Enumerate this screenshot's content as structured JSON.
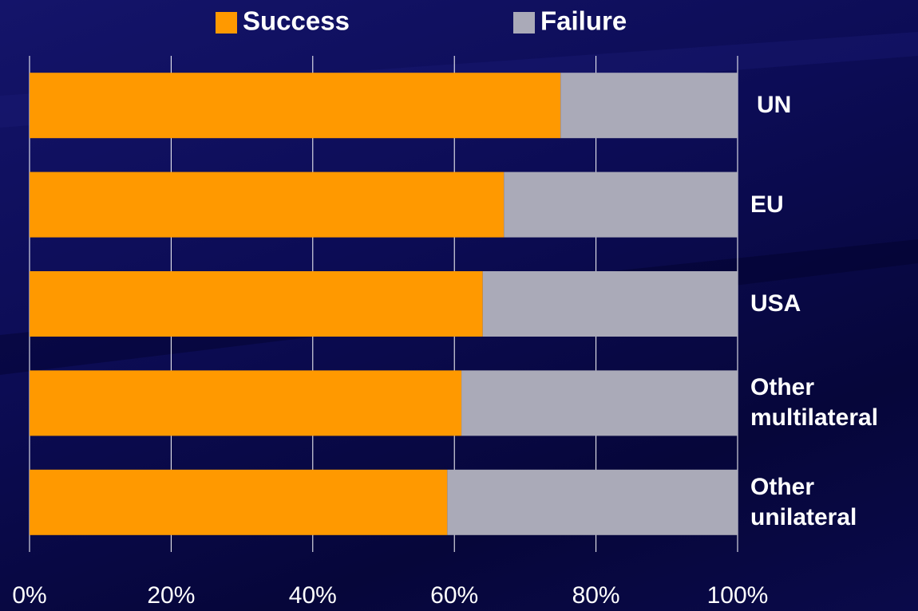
{
  "chart_data": {
    "type": "stacked_bar_horizontal",
    "categories": [
      "UN",
      "EU",
      "USA",
      "Other multilateral",
      "Other unilateral"
    ],
    "series": [
      {
        "name": "Success",
        "color": "#ff9900",
        "values": [
          75,
          67,
          64,
          61,
          59
        ]
      },
      {
        "name": "Failure",
        "color": "#aaaab8",
        "values": [
          25,
          33,
          36,
          39,
          41
        ]
      }
    ],
    "xlim": [
      0,
      100
    ],
    "xticks": [
      {
        "value": 0,
        "label": "0%"
      },
      {
        "value": 20,
        "label": "20%"
      },
      {
        "value": 40,
        "label": "40%"
      },
      {
        "value": 60,
        "label": "60%"
      },
      {
        "value": 80,
        "label": "80%"
      },
      {
        "value": 100,
        "label": "100%"
      }
    ],
    "grid": true,
    "legend": "top"
  }
}
